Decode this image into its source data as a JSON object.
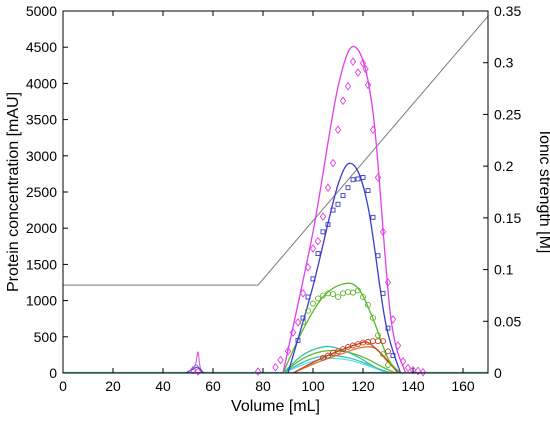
{
  "chart_data": {
    "type": "line",
    "xlabel": "Volume [mL]",
    "ylabel": "Protein concentration [mAU]",
    "y2label": "Ionic strength [M]",
    "xlim": [
      0,
      170
    ],
    "ylim": [
      0,
      5000
    ],
    "y2lim": [
      0,
      0.35
    ],
    "xticks": [
      "0",
      "20",
      "40",
      "60",
      "80",
      "100",
      "120",
      "140",
      "160"
    ],
    "yticks": [
      "0",
      "500",
      "1000",
      "1500",
      "2000",
      "2500",
      "3000",
      "3500",
      "4000",
      "4500",
      "5000"
    ],
    "y2ticks": [
      "0",
      "0.05",
      "0.1",
      "0.15",
      "0.2",
      "0.25",
      "0.3",
      "0.35"
    ],
    "grid": false,
    "colors": {
      "magenta": "#e040e8",
      "blue": "#3c3cc8",
      "green": "#5cb82c",
      "red": "#c83c1c",
      "orange": "#e07830",
      "teal": "#3cc0b0",
      "cyan": "#60e0e8",
      "gray": "#7a7a7a"
    },
    "ionic_strength_line": {
      "axis": "y2",
      "x": [
        0,
        78,
        170
      ],
      "y": [
        0.085,
        0.085,
        0.345
      ]
    },
    "peak_models": [
      {
        "color": "magenta",
        "x": [
          88,
          100,
          110,
          117,
          124,
          131,
          137
        ],
        "y": [
          0,
          1950,
          3950,
          4500,
          3600,
          800,
          0
        ]
      },
      {
        "color": "blue",
        "x": [
          90,
          100,
          110,
          116,
          122,
          129,
          135
        ],
        "y": [
          0,
          1200,
          2600,
          2880,
          2300,
          700,
          0
        ]
      },
      {
        "color": "green",
        "x": [
          88,
          96,
          104,
          112,
          118,
          124,
          130,
          135
        ],
        "y": [
          0,
          600,
          1050,
          1230,
          1170,
          750,
          200,
          0
        ]
      },
      {
        "color": "red",
        "x": [
          92,
          102,
          110,
          118,
          122,
          128,
          134
        ],
        "y": [
          0,
          180,
          300,
          400,
          420,
          240,
          0
        ]
      },
      {
        "color": "orange",
        "x": [
          92,
          102,
          112,
          119,
          125,
          130,
          135
        ],
        "y": [
          0,
          150,
          270,
          350,
          340,
          150,
          0
        ]
      },
      {
        "color": "teal",
        "x": [
          88,
          96,
          104,
          110,
          118,
          126,
          132
        ],
        "y": [
          0,
          250,
          360,
          340,
          220,
          60,
          0
        ]
      },
      {
        "color": "green",
        "x": [
          88,
          96,
          104,
          112,
          120,
          128,
          133
        ],
        "y": [
          0,
          200,
          300,
          300,
          220,
          80,
          0
        ]
      },
      {
        "color": "teal",
        "x": [
          88,
          98,
          106,
          114,
          122,
          130
        ],
        "y": [
          0,
          180,
          240,
          210,
          120,
          0
        ]
      },
      {
        "color": "cyan",
        "x": [
          88,
          98,
          106,
          114,
          122,
          130
        ],
        "y": [
          0,
          140,
          200,
          180,
          100,
          0
        ]
      }
    ],
    "small_peaks": [
      {
        "color": "magenta",
        "x": [
          49,
          51,
          53,
          54,
          55,
          57
        ],
        "y": [
          0,
          40,
          120,
          290,
          60,
          0
        ]
      },
      {
        "color": "teal",
        "x": [
          49,
          52,
          53.5,
          55,
          57
        ],
        "y": [
          0,
          60,
          110,
          40,
          0
        ]
      },
      {
        "color": "blue",
        "x": [
          49,
          52,
          54,
          56
        ],
        "y": [
          0,
          50,
          80,
          0
        ]
      }
    ],
    "measured_magenta": {
      "marker": "diamond",
      "x": [
        52,
        54,
        78,
        85,
        87,
        90,
        92,
        94,
        96,
        98,
        100,
        102,
        104,
        106,
        108,
        110,
        112,
        114,
        116,
        118,
        120,
        121,
        122,
        124,
        126,
        128,
        130,
        132,
        134,
        136,
        138,
        140,
        142,
        144
      ],
      "y": [
        40,
        20,
        20,
        80,
        180,
        300,
        560,
        700,
        1100,
        1460,
        1720,
        1820,
        2160,
        2560,
        2900,
        3360,
        3760,
        3960,
        4300,
        4150,
        4280,
        4200,
        3980,
        3360,
        2700,
        1950,
        1250,
        740,
        380,
        160,
        70,
        40,
        30,
        10
      ]
    },
    "measured_blue": {
      "marker": "square",
      "x": [
        94,
        96,
        98,
        100,
        102,
        104,
        106,
        108,
        110,
        112,
        114,
        116,
        118,
        120,
        122,
        124,
        126,
        128,
        130,
        132
      ],
      "y": [
        450,
        760,
        1050,
        1300,
        1650,
        1950,
        2050,
        2250,
        2330,
        2450,
        2560,
        2670,
        2680,
        2700,
        2520,
        2150,
        1620,
        1100,
        620,
        240
      ]
    },
    "measured_green": {
      "marker": "circle",
      "x": [
        96,
        98,
        100,
        102,
        104,
        106,
        108,
        110,
        112,
        114,
        116,
        118,
        120,
        122,
        124,
        126,
        128,
        130
      ],
      "y": [
        700,
        860,
        960,
        1030,
        1070,
        1100,
        1090,
        1050,
        1100,
        1120,
        1110,
        1140,
        1050,
        940,
        760,
        520,
        260,
        110
      ]
    },
    "measured_red": {
      "marker": "circle",
      "x": [
        104,
        106,
        108,
        110,
        112,
        114,
        116,
        118,
        120,
        122,
        124,
        126,
        128,
        130
      ],
      "y": [
        210,
        240,
        280,
        300,
        330,
        360,
        380,
        400,
        420,
        430,
        440,
        440,
        440,
        300
      ]
    }
  }
}
